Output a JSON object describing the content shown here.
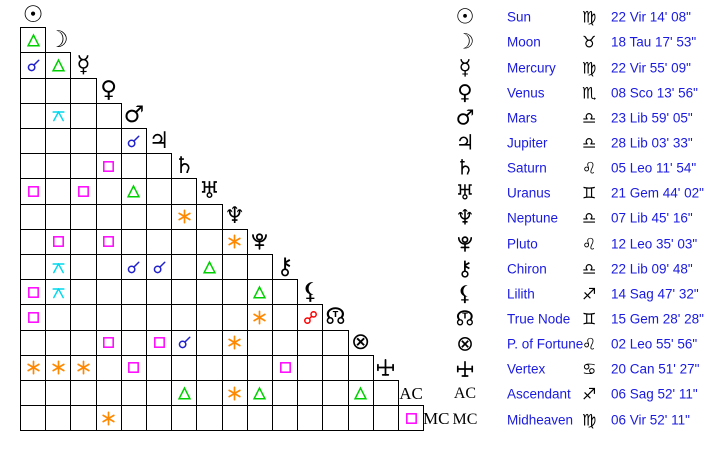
{
  "colors": {
    "background": "#ffffff",
    "grid_line": "#000000",
    "glyph_black": "#000000",
    "text_blue": "#1a1ae0"
  },
  "aspect_styles": {
    "conjunction": {
      "color": "#2222cc",
      "icon": "conjunction-icon"
    },
    "opposition": {
      "color": "#ff0000",
      "icon": "opposition-icon"
    },
    "square": {
      "color": "#ff00ff",
      "icon": "square-icon"
    },
    "trine": {
      "color": "#00d000",
      "icon": "trine-icon"
    },
    "sextile": {
      "color": "#ff8800",
      "icon": "sextile-icon"
    },
    "quincunx": {
      "color": "#00d8ee",
      "icon": "quincunx-icon"
    }
  },
  "planets": [
    {
      "id": "sun",
      "glyph": "☉",
      "name": "Sun",
      "sign": "♍",
      "position": "22 Vir 14' 08\""
    },
    {
      "id": "moon",
      "glyph": "☽",
      "name": "Moon",
      "sign": "♉",
      "position": "18 Tau 17' 53\""
    },
    {
      "id": "mercury",
      "glyph": "☿",
      "name": "Mercury",
      "sign": "♍",
      "position": "22 Vir 55' 09\""
    },
    {
      "id": "venus",
      "glyph": "♀",
      "name": "Venus",
      "sign": "♏",
      "position": "08 Sco 13' 56\""
    },
    {
      "id": "mars",
      "glyph": "♂",
      "name": "Mars",
      "sign": "♎",
      "position": "23 Lib 59' 05\""
    },
    {
      "id": "jupiter",
      "glyph": "♃",
      "name": "Jupiter",
      "sign": "♎",
      "position": "28 Lib 03' 33\""
    },
    {
      "id": "saturn",
      "glyph": "♄",
      "name": "Saturn",
      "sign": "♌",
      "position": "05 Leo 11' 54\""
    },
    {
      "id": "uranus",
      "glyph": "♅",
      "name": "Uranus",
      "sign": "♊",
      "position": "21 Gem 44' 02\""
    },
    {
      "id": "neptune",
      "glyph": "♆",
      "name": "Neptune",
      "sign": "♎",
      "position": "07 Lib 45' 16\""
    },
    {
      "id": "pluto",
      "glyph": "svg:pluto",
      "name": "Pluto",
      "sign": "♌",
      "position": "12 Leo 35' 03\""
    },
    {
      "id": "chiron",
      "glyph": "⚷",
      "name": "Chiron",
      "sign": "♎",
      "position": "22 Lib 09' 48\""
    },
    {
      "id": "lilith",
      "glyph": "⚸",
      "name": "Lilith",
      "sign": "♐",
      "position": "14 Sag 47' 32\""
    },
    {
      "id": "true-node",
      "glyph": "☊",
      "overlay": "T",
      "name": "True Node",
      "sign": "♊",
      "position": "15 Gem 28' 28\" R"
    },
    {
      "id": "p-of-fortune",
      "glyph": "⊗",
      "name": "P. of Fortune",
      "sign": "♌",
      "position": "02 Leo 55' 56\""
    },
    {
      "id": "vertex",
      "glyph": "svg:vertex",
      "name": "Vertex",
      "sign": "♋",
      "position": "20 Can 51' 27\""
    },
    {
      "id": "ascendant",
      "glyph": "AC",
      "serif": true,
      "name": "Ascendant",
      "sign": "♐",
      "position": "06 Sag 52' 11\""
    },
    {
      "id": "midheaven",
      "glyph": "MC",
      "serif": true,
      "name": "Midheaven",
      "sign": "♍",
      "position": "06 Vir 52' 11\""
    }
  ],
  "aspects": [
    {
      "row": "moon",
      "col": "sun",
      "type": "trine"
    },
    {
      "row": "mercury",
      "col": "sun",
      "type": "conjunction"
    },
    {
      "row": "mercury",
      "col": "moon",
      "type": "trine"
    },
    {
      "row": "mars",
      "col": "moon",
      "type": "quincunx"
    },
    {
      "row": "jupiter",
      "col": "mars",
      "type": "conjunction"
    },
    {
      "row": "saturn",
      "col": "venus",
      "type": "square"
    },
    {
      "row": "uranus",
      "col": "sun",
      "type": "square"
    },
    {
      "row": "uranus",
      "col": "mercury",
      "type": "square"
    },
    {
      "row": "uranus",
      "col": "mars",
      "type": "trine"
    },
    {
      "row": "neptune",
      "col": "saturn",
      "type": "sextile"
    },
    {
      "row": "pluto",
      "col": "moon",
      "type": "square"
    },
    {
      "row": "pluto",
      "col": "venus",
      "type": "square"
    },
    {
      "row": "pluto",
      "col": "neptune",
      "type": "sextile"
    },
    {
      "row": "chiron",
      "col": "moon",
      "type": "quincunx"
    },
    {
      "row": "chiron",
      "col": "mars",
      "type": "conjunction"
    },
    {
      "row": "chiron",
      "col": "jupiter",
      "type": "conjunction"
    },
    {
      "row": "chiron",
      "col": "uranus",
      "type": "trine"
    },
    {
      "row": "lilith",
      "col": "sun",
      "type": "square"
    },
    {
      "row": "lilith",
      "col": "moon",
      "type": "quincunx"
    },
    {
      "row": "lilith",
      "col": "pluto",
      "type": "trine"
    },
    {
      "row": "true-node",
      "col": "sun",
      "type": "square"
    },
    {
      "row": "true-node",
      "col": "pluto",
      "type": "sextile"
    },
    {
      "row": "true-node",
      "col": "lilith",
      "type": "opposition"
    },
    {
      "row": "p-of-fortune",
      "col": "venus",
      "type": "square"
    },
    {
      "row": "p-of-fortune",
      "col": "jupiter",
      "type": "square"
    },
    {
      "row": "p-of-fortune",
      "col": "saturn",
      "type": "conjunction"
    },
    {
      "row": "p-of-fortune",
      "col": "neptune",
      "type": "sextile"
    },
    {
      "row": "vertex",
      "col": "sun",
      "type": "sextile"
    },
    {
      "row": "vertex",
      "col": "moon",
      "type": "sextile"
    },
    {
      "row": "vertex",
      "col": "mercury",
      "type": "sextile"
    },
    {
      "row": "vertex",
      "col": "mars",
      "type": "square"
    },
    {
      "row": "vertex",
      "col": "chiron",
      "type": "square"
    },
    {
      "row": "ascendant",
      "col": "saturn",
      "type": "trine"
    },
    {
      "row": "ascendant",
      "col": "neptune",
      "type": "sextile"
    },
    {
      "row": "ascendant",
      "col": "pluto",
      "type": "trine"
    },
    {
      "row": "ascendant",
      "col": "p-of-fortune",
      "type": "trine"
    },
    {
      "row": "midheaven",
      "col": "venus",
      "type": "sextile"
    },
    {
      "row": "midheaven",
      "col": "ascendant",
      "type": "square"
    }
  ]
}
